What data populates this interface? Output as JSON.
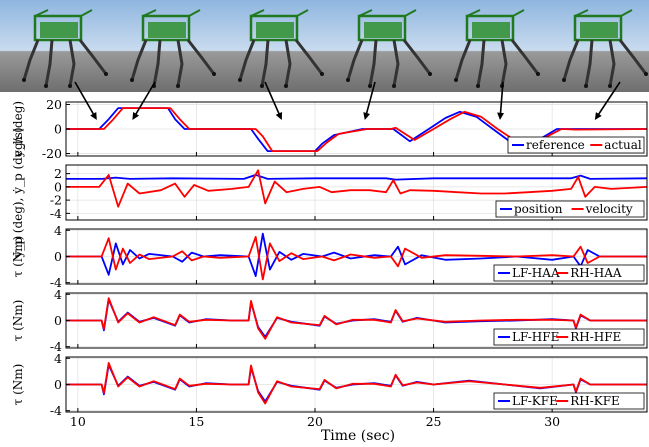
{
  "photo_strip": {
    "frames": 6,
    "description_icons": [
      "robot-frame-icon"
    ]
  },
  "chart_data": [
    {
      "type": "line",
      "xlim": [
        9.5,
        34
      ],
      "ylim": [
        -22,
        22
      ],
      "yticks": [
        -20,
        0,
        20
      ],
      "ylabel": "y_h (deg)",
      "legend": "bottom-right",
      "grid": true,
      "series": [
        {
          "name": "reference",
          "color": "#0000ff",
          "x": [
            9.5,
            10.9,
            11.3,
            11.7,
            13.8,
            14.1,
            14.5,
            17.3,
            17.6,
            18,
            20,
            20.3,
            20.8,
            22,
            22.6,
            23.1,
            23.3,
            24,
            24.8,
            25.5,
            26.1,
            26.8,
            27.5,
            28.2,
            28.8,
            29.5,
            30.2,
            30.8,
            34
          ],
          "y": [
            0,
            0,
            8,
            17,
            17,
            8,
            0,
            0,
            -8,
            -18,
            -18,
            -12,
            -5,
            0,
            0,
            0,
            0,
            -10,
            0,
            9,
            14,
            10,
            0,
            -10,
            -14,
            -8,
            0,
            0,
            0
          ]
        },
        {
          "name": "actual",
          "color": "#ff0000",
          "x": [
            9.5,
            11.1,
            11.5,
            11.9,
            13.9,
            14.3,
            14.7,
            17.5,
            17.8,
            18.2,
            20.1,
            20.5,
            21,
            22.2,
            22.8,
            23.2,
            23.4,
            24.2,
            25,
            25.7,
            26.3,
            27,
            27.7,
            28.4,
            29,
            29.7,
            30.4,
            31,
            34
          ],
          "y": [
            0,
            0,
            8,
            17,
            17,
            8,
            0,
            0,
            -6,
            -18,
            -18,
            -11,
            -4,
            0,
            0,
            0,
            1,
            -9,
            0,
            8,
            14,
            10,
            0,
            -9,
            -13,
            -7,
            0,
            -0.5,
            0
          ]
        }
      ]
    },
    {
      "type": "line",
      "xlim": [
        9.5,
        34
      ],
      "ylim": [
        -5,
        3.3
      ],
      "yticks": [
        -4,
        -2,
        0,
        2
      ],
      "ylabel": "y_p (deg), ẏ_p (deg/s)",
      "legend": "bottom-right",
      "grid": true,
      "series": [
        {
          "name": "position",
          "color": "#0000ff",
          "x": [
            9.5,
            11,
            11.6,
            12.2,
            14,
            17,
            17.5,
            18,
            20,
            23,
            23.4,
            25,
            30.8,
            31.2,
            31.6,
            34
          ],
          "y": [
            1.2,
            1.2,
            1.4,
            1.2,
            1.3,
            1.2,
            1.8,
            1.2,
            1.3,
            1.3,
            1.1,
            1.3,
            1.3,
            1.7,
            1.2,
            1.3
          ]
        },
        {
          "name": "velocity",
          "color": "#ff0000",
          "x": [
            9.5,
            10.9,
            11.3,
            11.7,
            12.1,
            12.6,
            13.5,
            14.1,
            14.5,
            14.9,
            15.5,
            16.5,
            17.2,
            17.6,
            17.9,
            18.3,
            18.8,
            19.5,
            20.2,
            20.7,
            21.5,
            22.3,
            23,
            23.3,
            23.6,
            24,
            25,
            26,
            27,
            28,
            29,
            30,
            30.8,
            31.1,
            31.4,
            31.8,
            32.5,
            34
          ],
          "y": [
            0,
            0,
            1.8,
            -3,
            0.5,
            -1,
            -0.5,
            0.5,
            -1.5,
            0.3,
            -0.6,
            -0.3,
            0,
            2.5,
            -2.5,
            0.8,
            -0.8,
            -0.3,
            0,
            -0.8,
            -0.5,
            -0.5,
            -0.8,
            1,
            -1,
            -0.5,
            -0.6,
            -0.8,
            -1,
            -1,
            -0.8,
            -0.6,
            -0.3,
            1.5,
            -1.5,
            0,
            -0.3,
            0
          ]
        }
      ]
    },
    {
      "type": "line",
      "xlim": [
        9.5,
        34
      ],
      "ylim": [
        -4.2,
        4.2
      ],
      "yticks": [
        -4,
        0,
        4
      ],
      "ylabel": "τ (Nm)",
      "legend": "bottom-right",
      "grid": true,
      "series": [
        {
          "name": "LF-HAA",
          "color": "#0000ff",
          "x": [
            9.5,
            11,
            11.3,
            11.6,
            11.9,
            12.2,
            12.6,
            13,
            14,
            14.4,
            14.8,
            15.3,
            16,
            17.2,
            17.5,
            17.8,
            18.1,
            18.5,
            19,
            19.5,
            20.3,
            20.8,
            21.5,
            22.5,
            23.2,
            23.5,
            23.8,
            24.5,
            25.5,
            27,
            28.5,
            30,
            30.9,
            31.2,
            31.5,
            32,
            34
          ],
          "y": [
            0,
            0,
            -2.8,
            2,
            -1.2,
            1,
            -0.3,
            0.4,
            0,
            -0.8,
            0.6,
            0,
            0.2,
            0,
            -3,
            3.5,
            -2,
            0.7,
            -0.5,
            0.4,
            0,
            0.6,
            -0.3,
            0.2,
            0,
            1.5,
            -1.2,
            0.2,
            -0.5,
            -0.3,
            0,
            -0.5,
            0,
            -1.5,
            1,
            0,
            0
          ]
        },
        {
          "name": "RH-HAA",
          "color": "#ff0000",
          "x": [
            9.5,
            11,
            11.3,
            11.6,
            11.9,
            12.2,
            12.6,
            13,
            14,
            14.4,
            14.8,
            15.3,
            16,
            17.2,
            17.5,
            17.8,
            18.1,
            18.5,
            19,
            19.5,
            20.3,
            20.8,
            21.5,
            22.5,
            23.2,
            23.5,
            23.8,
            24.5,
            25.5,
            27,
            28.5,
            30,
            30.9,
            31.2,
            31.5,
            32,
            34
          ],
          "y": [
            0,
            0,
            2.8,
            -2,
            1.2,
            -1,
            0.3,
            -0.4,
            0,
            0.8,
            -0.6,
            0,
            -0.2,
            0,
            3,
            -3.5,
            2,
            -0.7,
            0.5,
            -0.4,
            0,
            -0.6,
            0.3,
            -0.2,
            0,
            -1.5,
            1.2,
            -0.2,
            0.2,
            0.1,
            0,
            0.2,
            0,
            1.5,
            -1,
            0,
            0
          ]
        }
      ]
    },
    {
      "type": "line",
      "xlim": [
        9.5,
        34
      ],
      "ylim": [
        -4.2,
        4.2
      ],
      "yticks": [
        -4,
        0,
        4
      ],
      "ylabel": "τ (Nm)",
      "legend": "bottom-right",
      "grid": true,
      "series": [
        {
          "name": "LF-HFE",
          "color": "#0000ff",
          "x": [
            9.5,
            11,
            11.1,
            11.3,
            11.7,
            12.1,
            12.6,
            13.2,
            14.1,
            14.3,
            14.7,
            15.4,
            16.5,
            17.2,
            17.3,
            17.6,
            17.9,
            18.4,
            19,
            20.2,
            20.4,
            20.9,
            21.6,
            22.5,
            23.2,
            23.4,
            23.7,
            24.3,
            25.5,
            27,
            28.5,
            30,
            30.9,
            31,
            31.2,
            31.6,
            32.5,
            34
          ],
          "y": [
            0,
            0,
            -1.5,
            3.2,
            -0.2,
            1.2,
            -0.2,
            0.4,
            -0.8,
            0.8,
            -0.3,
            0.2,
            0,
            0,
            2.8,
            -1,
            -2.5,
            0.4,
            -0.2,
            -0.8,
            0.6,
            -0.5,
            0,
            0.2,
            -0.2,
            1.5,
            -0.2,
            0.4,
            -0.3,
            -0.1,
            0,
            0.2,
            0,
            -1.2,
            0.8,
            0,
            0,
            0
          ]
        },
        {
          "name": "RH-HFE",
          "color": "#ff0000",
          "x": [
            9.5,
            11,
            11.1,
            11.3,
            11.7,
            12.1,
            12.6,
            13.2,
            14.1,
            14.3,
            14.7,
            15.4,
            16.5,
            17.2,
            17.3,
            17.6,
            17.9,
            18.4,
            19,
            20.2,
            20.4,
            20.9,
            21.6,
            22.5,
            23.2,
            23.4,
            23.7,
            24.3,
            25.5,
            27,
            28.5,
            30,
            30.9,
            31,
            31.2,
            31.6,
            32.5,
            34
          ],
          "y": [
            0,
            0,
            -1.3,
            3.4,
            -0.3,
            1.1,
            -0.3,
            0.5,
            -0.7,
            0.9,
            -0.2,
            0.1,
            0,
            0,
            3,
            -1.2,
            -2.8,
            0.5,
            -0.3,
            -0.7,
            0.7,
            -0.6,
            0.1,
            0.1,
            -0.3,
            1.6,
            -0.1,
            0.3,
            -0.2,
            0,
            0.1,
            0.1,
            0,
            -1.1,
            0.9,
            0,
            0,
            0
          ]
        }
      ]
    },
    {
      "type": "line",
      "xlim": [
        9.5,
        34
      ],
      "ylim": [
        -4.2,
        4.2
      ],
      "yticks": [
        -4,
        0,
        4
      ],
      "ylabel": "τ (Nm)",
      "xlabel": "Time (sec)",
      "xticks": [
        10,
        15,
        20,
        25,
        30
      ],
      "legend": "bottom-right",
      "grid": true,
      "series": [
        {
          "name": "LF-KFE",
          "color": "#0000ff",
          "x": [
            9.5,
            11,
            11.1,
            11.3,
            11.7,
            12.1,
            12.6,
            13.2,
            14.1,
            14.3,
            14.7,
            15.4,
            16.5,
            17.2,
            17.3,
            17.6,
            17.9,
            18.4,
            19,
            20.2,
            20.4,
            20.9,
            21.6,
            22.5,
            23.2,
            23.4,
            23.7,
            24.3,
            25,
            26.5,
            28,
            29.5,
            30.9,
            31,
            31.2,
            31.6,
            32.5,
            34
          ],
          "y": [
            0,
            0,
            -1.5,
            3,
            -0.2,
            1.2,
            -0.2,
            0.4,
            -0.8,
            0.8,
            -0.3,
            0.2,
            0,
            0,
            2.6,
            -1,
            -2.6,
            0.4,
            -0.2,
            -0.8,
            0.6,
            -0.5,
            0,
            0.2,
            -0.2,
            1.4,
            -0.2,
            0.4,
            0,
            0.6,
            0,
            -0.6,
            0,
            -1.2,
            0.8,
            0,
            0,
            0
          ]
        },
        {
          "name": "RH-KFE",
          "color": "#ff0000",
          "x": [
            9.5,
            11,
            11.1,
            11.3,
            11.7,
            12.1,
            12.6,
            13.2,
            14.1,
            14.3,
            14.7,
            15.4,
            16.5,
            17.2,
            17.3,
            17.6,
            17.9,
            18.4,
            19,
            20.2,
            20.4,
            20.9,
            21.6,
            22.5,
            23.2,
            23.4,
            23.7,
            24.3,
            25,
            26.5,
            28,
            29.5,
            30.9,
            31,
            31.2,
            31.6,
            32.5,
            34
          ],
          "y": [
            0,
            0,
            -1.3,
            3.3,
            -0.3,
            1.1,
            -0.3,
            0.5,
            -0.7,
            0.9,
            -0.2,
            0.1,
            0,
            0,
            2.9,
            -1.2,
            -2.9,
            0.5,
            -0.3,
            -0.7,
            0.7,
            -0.6,
            0.1,
            0.1,
            -0.3,
            1.5,
            -0.1,
            0.3,
            0,
            0.5,
            0,
            -0.5,
            0,
            -1.1,
            0.9,
            0,
            0,
            0
          ]
        }
      ]
    }
  ],
  "arrows_to_time": [
    10.8,
    12.3,
    18.6,
    22.1,
    27.8,
    31.8
  ]
}
